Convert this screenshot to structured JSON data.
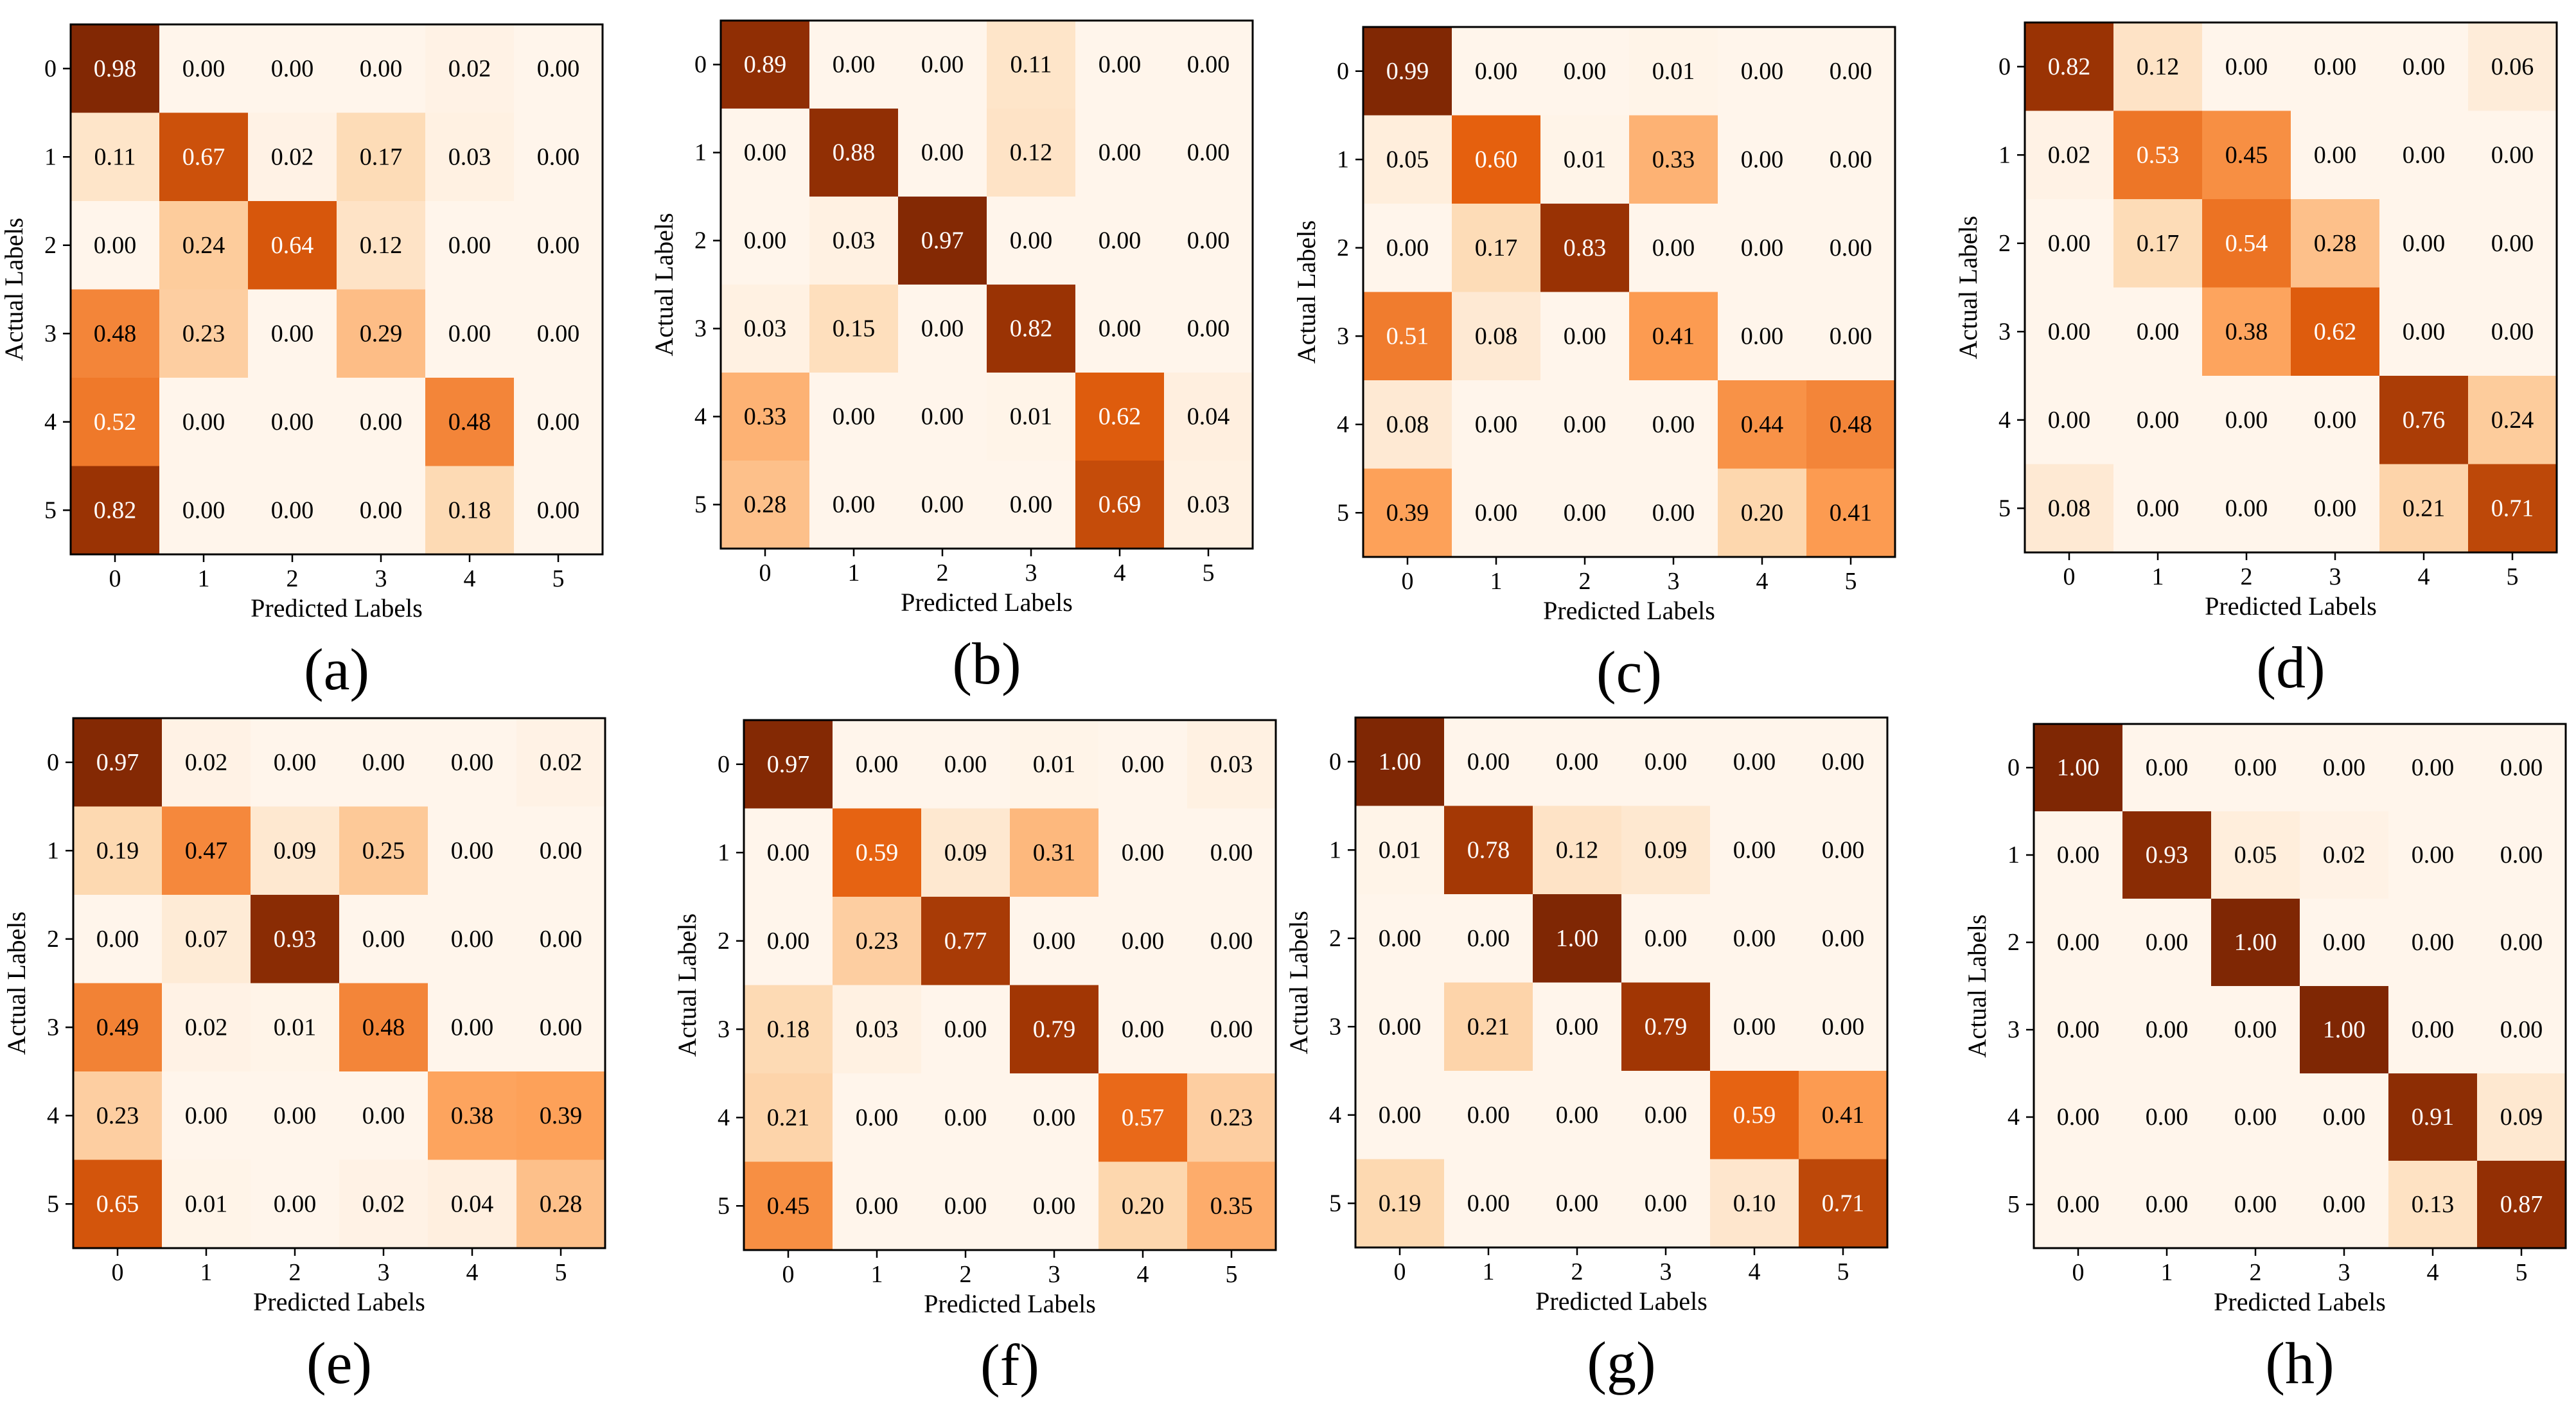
{
  "figure": {
    "colormap": [
      "#fff5eb",
      "#fdd7ae",
      "#fd9e55",
      "#e5600e",
      "#9d3404",
      "#7f2704"
    ]
  },
  "chart_data": [
    {
      "type": "heatmap",
      "panel_label": "(a)",
      "xlabel": "Predicted Labels",
      "ylabel": "Actual Labels",
      "x_ticks": [
        "0",
        "1",
        "2",
        "3",
        "4",
        "5"
      ],
      "y_ticks": [
        "0",
        "1",
        "2",
        "3",
        "4",
        "5"
      ],
      "vmin": 0,
      "vmax": 1,
      "cell_text": [
        [
          "0.98",
          "0.00",
          "0.00",
          "0.00",
          "0.02",
          "0.00"
        ],
        [
          "0.11",
          "0.67",
          "0.02",
          "0.17",
          "0.03",
          "0.00"
        ],
        [
          "0.00",
          "0.24",
          "0.64",
          "0.12",
          "0.00",
          "0.00"
        ],
        [
          "0.48",
          "0.23",
          "0.00",
          "0.29",
          "0.00",
          "0.00"
        ],
        [
          "0.52",
          "0.00",
          "0.00",
          "0.00",
          "0.48",
          "0.00"
        ],
        [
          "0.82",
          "0.00",
          "0.00",
          "0.00",
          "0.18",
          "0.00"
        ]
      ],
      "values": [
        [
          0.98,
          0.0,
          0.0,
          0.0,
          0.02,
          0.0
        ],
        [
          0.11,
          0.67,
          0.02,
          0.17,
          0.03,
          0.0
        ],
        [
          0.0,
          0.24,
          0.64,
          0.12,
          0.0,
          0.0
        ],
        [
          0.48,
          0.23,
          0.0,
          0.29,
          0.0,
          0.0
        ],
        [
          0.52,
          0.0,
          0.0,
          0.0,
          0.48,
          0.0
        ],
        [
          0.82,
          0.0,
          0.0,
          0.0,
          0.18,
          0.0
        ]
      ]
    },
    {
      "type": "heatmap",
      "panel_label": "(b)",
      "xlabel": "Predicted Labels",
      "ylabel": "Actual Labels",
      "x_ticks": [
        "0",
        "1",
        "2",
        "3",
        "4",
        "5"
      ],
      "y_ticks": [
        "0",
        "1",
        "2",
        "3",
        "4",
        "5"
      ],
      "vmin": 0,
      "vmax": 1,
      "cell_text": [
        [
          "0.89",
          "0.00",
          "0.00",
          "0.11",
          "0.00",
          "0.00"
        ],
        [
          "0.00",
          "0.88",
          "0.00",
          "0.12",
          "0.00",
          "0.00"
        ],
        [
          "0.00",
          "0.03",
          "0.97",
          "0.00",
          "0.00",
          "0.00"
        ],
        [
          "0.03",
          "0.15",
          "0.00",
          "0.82",
          "0.00",
          "0.00"
        ],
        [
          "0.33",
          "0.00",
          "0.00",
          "0.01",
          "0.62",
          "0.04"
        ],
        [
          "0.28",
          "0.00",
          "0.00",
          "0.00",
          "0.69",
          "0.03"
        ]
      ],
      "values": [
        [
          0.89,
          0.0,
          0.0,
          0.11,
          0.0,
          0.0
        ],
        [
          0.0,
          0.88,
          0.0,
          0.12,
          0.0,
          0.0
        ],
        [
          0.0,
          0.03,
          0.97,
          0.0,
          0.0,
          0.0
        ],
        [
          0.03,
          0.15,
          0.0,
          0.82,
          0.0,
          0.0
        ],
        [
          0.33,
          0.0,
          0.0,
          0.01,
          0.62,
          0.04
        ],
        [
          0.28,
          0.0,
          0.0,
          0.0,
          0.69,
          0.03
        ]
      ]
    },
    {
      "type": "heatmap",
      "panel_label": "(c)",
      "xlabel": "Predicted Labels",
      "ylabel": "Actual Labels",
      "x_ticks": [
        "0",
        "1",
        "2",
        "3",
        "4",
        "5"
      ],
      "y_ticks": [
        "0",
        "1",
        "2",
        "3",
        "4",
        "5"
      ],
      "vmin": 0,
      "vmax": 1,
      "cell_text": [
        [
          "0.99",
          "0.00",
          "0.00",
          "0.01",
          "0.00",
          "0.00"
        ],
        [
          "0.05",
          "0.60",
          "0.01",
          "0.33",
          "0.00",
          "0.00"
        ],
        [
          "0.00",
          "0.17",
          "0.83",
          "0.00",
          "0.00",
          "0.00"
        ],
        [
          "0.51",
          "0.08",
          "0.00",
          "0.41",
          "0.00",
          "0.00"
        ],
        [
          "0.08",
          "0.00",
          "0.00",
          "0.00",
          "0.44",
          "0.48"
        ],
        [
          "0.39",
          "0.00",
          "0.00",
          "0.00",
          "0.20",
          "0.41"
        ]
      ],
      "values": [
        [
          0.99,
          0.0,
          0.0,
          0.01,
          0.0,
          0.0
        ],
        [
          0.05,
          0.6,
          0.01,
          0.33,
          0.0,
          0.0
        ],
        [
          0.0,
          0.17,
          0.83,
          0.0,
          0.0,
          0.0
        ],
        [
          0.51,
          0.08,
          0.0,
          0.41,
          0.0,
          0.0
        ],
        [
          0.08,
          0.0,
          0.0,
          0.0,
          0.44,
          0.48
        ],
        [
          0.39,
          0.0,
          0.0,
          0.0,
          0.2,
          0.41
        ]
      ]
    },
    {
      "type": "heatmap",
      "panel_label": "(d)",
      "xlabel": "Predicted Labels",
      "ylabel": "Actual Labels",
      "x_ticks": [
        "0",
        "1",
        "2",
        "3",
        "4",
        "5"
      ],
      "y_ticks": [
        "0",
        "1",
        "2",
        "3",
        "4",
        "5"
      ],
      "vmin": 0,
      "vmax": 1,
      "cell_text": [
        [
          "0.82",
          "0.12",
          "0.00",
          "0.00",
          "0.00",
          "0.06"
        ],
        [
          "0.02",
          "0.53",
          "0.45",
          "0.00",
          "0.00",
          "0.00"
        ],
        [
          "0.00",
          "0.17",
          "0.54",
          "0.28",
          "0.00",
          "0.00"
        ],
        [
          "0.00",
          "0.00",
          "0.38",
          "0.62",
          "0.00",
          "0.00"
        ],
        [
          "0.00",
          "0.00",
          "0.00",
          "0.00",
          "0.76",
          "0.24"
        ],
        [
          "0.08",
          "0.00",
          "0.00",
          "0.00",
          "0.21",
          "0.71"
        ]
      ],
      "values": [
        [
          0.82,
          0.12,
          0.0,
          0.0,
          0.0,
          0.06
        ],
        [
          0.02,
          0.53,
          0.45,
          0.0,
          0.0,
          0.0
        ],
        [
          0.0,
          0.17,
          0.54,
          0.28,
          0.0,
          0.0
        ],
        [
          0.0,
          0.0,
          0.38,
          0.62,
          0.0,
          0.0
        ],
        [
          0.0,
          0.0,
          0.0,
          0.0,
          0.76,
          0.24
        ],
        [
          0.08,
          0.0,
          0.0,
          0.0,
          0.21,
          0.71
        ]
      ]
    },
    {
      "type": "heatmap",
      "panel_label": "(e)",
      "xlabel": "Predicted Labels",
      "ylabel": "Actual Labels",
      "x_ticks": [
        "0",
        "1",
        "2",
        "3",
        "4",
        "5"
      ],
      "y_ticks": [
        "0",
        "1",
        "2",
        "3",
        "4",
        "5"
      ],
      "vmin": 0,
      "vmax": 1,
      "cell_text": [
        [
          "0.97",
          "0.02",
          "0.00",
          "0.00",
          "0.00",
          "0.02"
        ],
        [
          "0.19",
          "0.47",
          "0.09",
          "0.25",
          "0.00",
          "0.00"
        ],
        [
          "0.00",
          "0.07",
          "0.93",
          "0.00",
          "0.00",
          "0.00"
        ],
        [
          "0.49",
          "0.02",
          "0.01",
          "0.48",
          "0.00",
          "0.00"
        ],
        [
          "0.23",
          "0.00",
          "0.00",
          "0.00",
          "0.38",
          "0.39"
        ],
        [
          "0.65",
          "0.01",
          "0.00",
          "0.02",
          "0.04",
          "0.28"
        ]
      ],
      "values": [
        [
          0.97,
          0.02,
          0.0,
          0.0,
          0.0,
          0.02
        ],
        [
          0.19,
          0.47,
          0.09,
          0.25,
          0.0,
          0.0
        ],
        [
          0.0,
          0.07,
          0.93,
          0.0,
          0.0,
          0.0
        ],
        [
          0.49,
          0.02,
          0.01,
          0.48,
          0.0,
          0.0
        ],
        [
          0.23,
          0.0,
          0.0,
          0.0,
          0.38,
          0.39
        ],
        [
          0.65,
          0.01,
          0.0,
          0.02,
          0.04,
          0.28
        ]
      ]
    },
    {
      "type": "heatmap",
      "panel_label": "(f)",
      "xlabel": "Predicted Labels",
      "ylabel": "Actual Labels",
      "x_ticks": [
        "0",
        "1",
        "2",
        "3",
        "4",
        "5"
      ],
      "y_ticks": [
        "0",
        "1",
        "2",
        "3",
        "4",
        "5"
      ],
      "vmin": 0,
      "vmax": 1,
      "cell_text": [
        [
          "0.97",
          "0.00",
          "0.00",
          "0.01",
          "0.00",
          "0.03"
        ],
        [
          "0.00",
          "0.59",
          "0.09",
          "0.31",
          "0.00",
          "0.00"
        ],
        [
          "0.00",
          "0.23",
          "0.77",
          "0.00",
          "0.00",
          "0.00"
        ],
        [
          "0.18",
          "0.03",
          "0.00",
          "0.79",
          "0.00",
          "0.00"
        ],
        [
          "0.21",
          "0.00",
          "0.00",
          "0.00",
          "0.57",
          "0.23"
        ],
        [
          "0.45",
          "0.00",
          "0.00",
          "0.00",
          "0.20",
          "0.35"
        ]
      ],
      "values": [
        [
          0.97,
          0.0,
          0.0,
          0.01,
          0.0,
          0.03
        ],
        [
          0.0,
          0.59,
          0.09,
          0.31,
          0.0,
          0.0
        ],
        [
          0.0,
          0.23,
          0.77,
          0.0,
          0.0,
          0.0
        ],
        [
          0.18,
          0.03,
          0.0,
          0.79,
          0.0,
          0.0
        ],
        [
          0.21,
          0.0,
          0.0,
          0.0,
          0.57,
          0.23
        ],
        [
          0.45,
          0.0,
          0.0,
          0.0,
          0.2,
          0.35
        ]
      ]
    },
    {
      "type": "heatmap",
      "panel_label": "(g)",
      "xlabel": "Predicted Labels",
      "ylabel": "Actual Labels",
      "x_ticks": [
        "0",
        "1",
        "2",
        "3",
        "4",
        "5"
      ],
      "y_ticks": [
        "0",
        "1",
        "2",
        "3",
        "4",
        "5"
      ],
      "vmin": 0,
      "vmax": 1,
      "cell_text": [
        [
          "1.00",
          "0.00",
          "0.00",
          "0.00",
          "0.00",
          "0.00"
        ],
        [
          "0.01",
          "0.78",
          "0.12",
          "0.09",
          "0.00",
          "0.00"
        ],
        [
          "0.00",
          "0.00",
          "1.00",
          "0.00",
          "0.00",
          "0.00"
        ],
        [
          "0.00",
          "0.21",
          "0.00",
          "0.79",
          "0.00",
          "0.00"
        ],
        [
          "0.00",
          "0.00",
          "0.00",
          "0.00",
          "0.59",
          "0.41"
        ],
        [
          "0.19",
          "0.00",
          "0.00",
          "0.00",
          "0.10",
          "0.71"
        ]
      ],
      "values": [
        [
          1.0,
          0.0,
          0.0,
          0.0,
          0.0,
          0.0
        ],
        [
          0.01,
          0.78,
          0.12,
          0.09,
          0.0,
          0.0
        ],
        [
          0.0,
          0.0,
          1.0,
          0.0,
          0.0,
          0.0
        ],
        [
          0.0,
          0.21,
          0.0,
          0.79,
          0.0,
          0.0
        ],
        [
          0.0,
          0.0,
          0.0,
          0.0,
          0.59,
          0.41
        ],
        [
          0.19,
          0.0,
          0.0,
          0.0,
          0.1,
          0.71
        ]
      ]
    },
    {
      "type": "heatmap",
      "panel_label": "(h)",
      "xlabel": "Predicted Labels",
      "ylabel": "Actual Labels",
      "x_ticks": [
        "0",
        "1",
        "2",
        "3",
        "4",
        "5"
      ],
      "y_ticks": [
        "0",
        "1",
        "2",
        "3",
        "4",
        "5"
      ],
      "vmin": 0,
      "vmax": 1,
      "cell_text": [
        [
          "1.00",
          "0.00",
          "0.00",
          "0.00",
          "0.00",
          "0.00"
        ],
        [
          "0.00",
          "0.93",
          "0.05",
          "0.02",
          "0.00",
          "0.00"
        ],
        [
          "0.00",
          "0.00",
          "1.00",
          "0.00",
          "0.00",
          "0.00"
        ],
        [
          "0.00",
          "0.00",
          "0.00",
          "1.00",
          "0.00",
          "0.00"
        ],
        [
          "0.00",
          "0.00",
          "0.00",
          "0.00",
          "0.91",
          "0.09"
        ],
        [
          "0.00",
          "0.00",
          "0.00",
          "0.00",
          "0.13",
          "0.87"
        ]
      ],
      "values": [
        [
          1.0,
          0.0,
          0.0,
          0.0,
          0.0,
          0.0
        ],
        [
          0.0,
          0.93,
          0.05,
          0.02,
          0.0,
          0.0
        ],
        [
          0.0,
          0.0,
          1.0,
          0.0,
          0.0,
          0.0
        ],
        [
          0.0,
          0.0,
          0.0,
          1.0,
          0.0,
          0.0
        ],
        [
          0.0,
          0.0,
          0.0,
          0.0,
          0.91,
          0.09
        ],
        [
          0.0,
          0.0,
          0.0,
          0.0,
          0.13,
          0.87
        ]
      ]
    }
  ]
}
